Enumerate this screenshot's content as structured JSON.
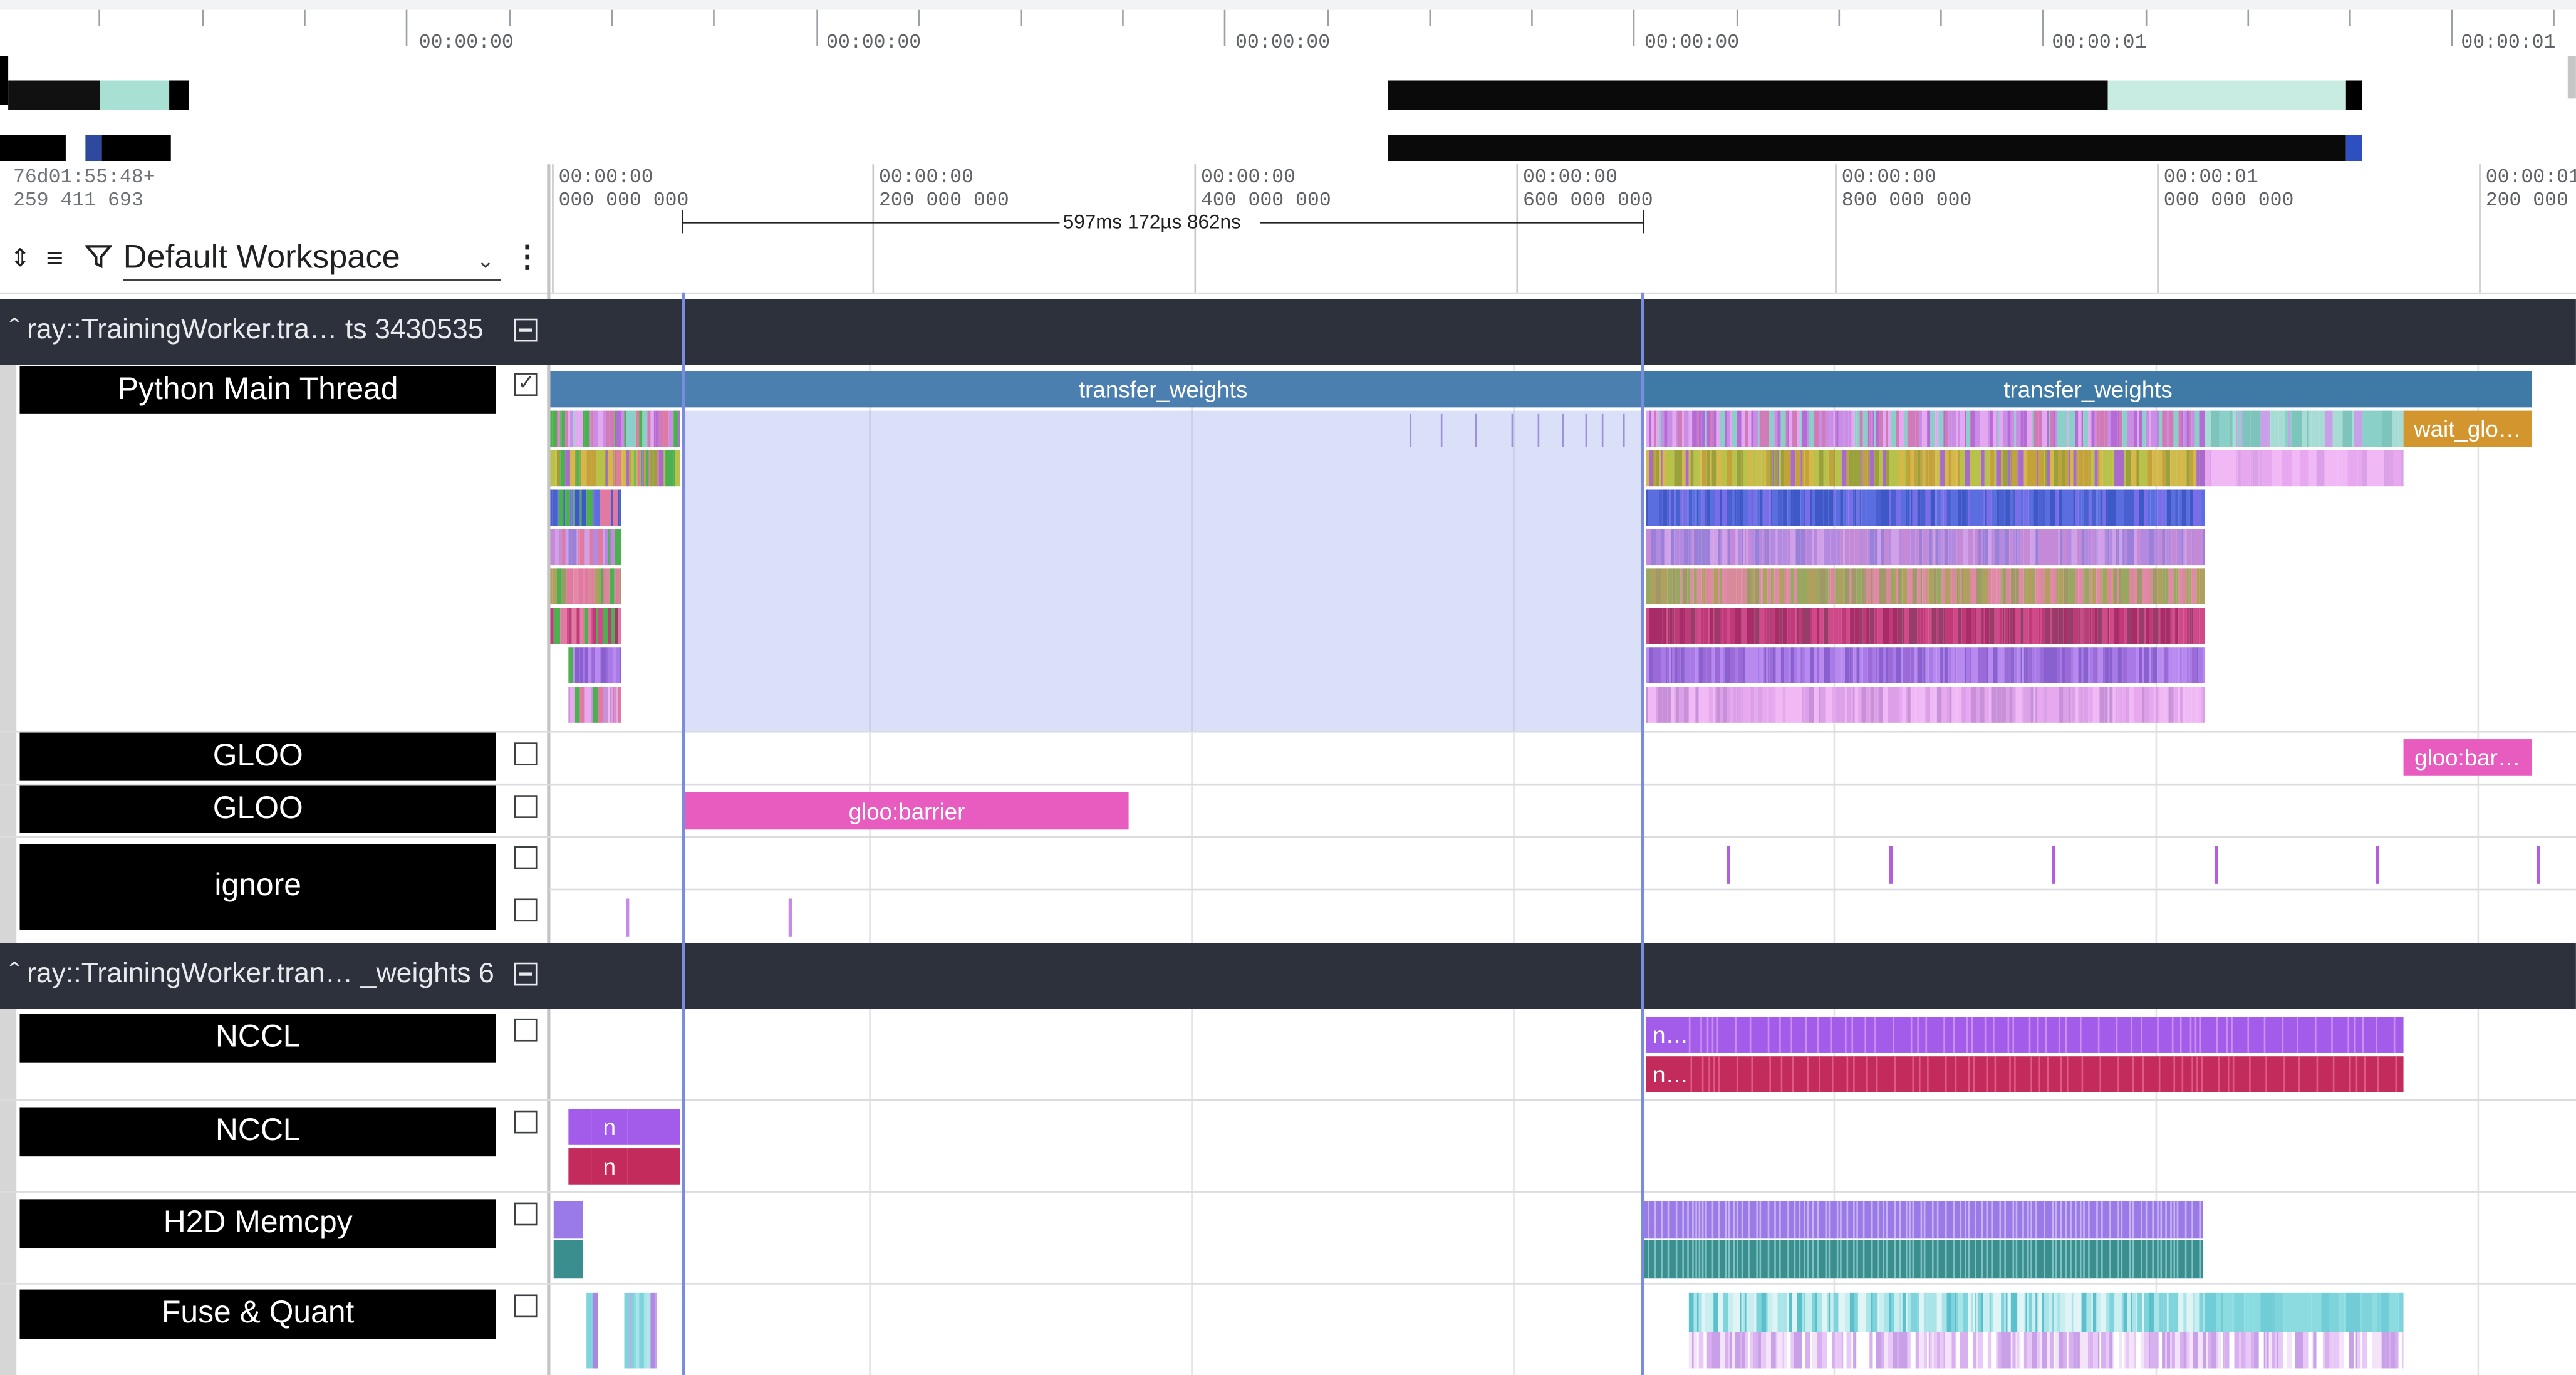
{
  "overview": {
    "tick_labels": [
      "00:00:00",
      "00:00:00",
      "00:00:00",
      "00:00:00",
      "00:00:01",
      "00:00:01"
    ]
  },
  "header": {
    "origin_timestamp": "76d01:55:48+\n259 411 693",
    "workspace": "Default Workspace",
    "ticks": [
      {
        "time": "00:00:00",
        "ns": "000 000 000"
      },
      {
        "time": "00:00:00",
        "ns": "200 000 000"
      },
      {
        "time": "00:00:00",
        "ns": "400 000 000"
      },
      {
        "time": "00:00:00",
        "ns": "600 000 000"
      },
      {
        "time": "00:00:00",
        "ns": "800 000 000"
      },
      {
        "time": "00:00:01",
        "ns": "000 000 000"
      },
      {
        "time": "00:00:01",
        "ns": "200 000 000"
      }
    ],
    "selection_duration": "597ms 172µs 862ns"
  },
  "groups": [
    {
      "title": "ray::TrainingWorker.tra… ts 3430535",
      "tracks": [
        {
          "label": "Python Main Thread",
          "checked": true,
          "slices": [
            "transfer_weights",
            "transfer_weights",
            "wait_glo…"
          ]
        },
        {
          "label": "GLOO",
          "checked": false,
          "slices": [
            "gloo:bar…"
          ]
        },
        {
          "label": "GLOO",
          "checked": false,
          "slices": [
            "gloo:barrier"
          ]
        },
        {
          "label": "ignore",
          "checked": false,
          "slices": []
        }
      ]
    },
    {
      "title": "ray::TrainingWorker.tran… _weights 6",
      "tracks": [
        {
          "label": "NCCL",
          "checked": false,
          "slices": [
            "n…",
            "n…"
          ]
        },
        {
          "label": "NCCL",
          "checked": false,
          "slices": [
            "n",
            "n"
          ]
        },
        {
          "label": "H2D Memcpy",
          "checked": false,
          "slices": []
        },
        {
          "label": "Fuse & Quant",
          "checked": false,
          "slices": []
        }
      ]
    }
  ],
  "colors": {
    "group_header_bg": "#2c313b",
    "transfer_weights": "#4a7fb0",
    "wait_global": "#d3962e",
    "gloo_barrier": "#e85bbf",
    "nccl_purple": "#a35bea",
    "nccl_red": "#c22b5b",
    "h2d_purple": "#9a7ae6",
    "h2d_teal": "#3a8e8e",
    "selection": "#7b8cde"
  }
}
